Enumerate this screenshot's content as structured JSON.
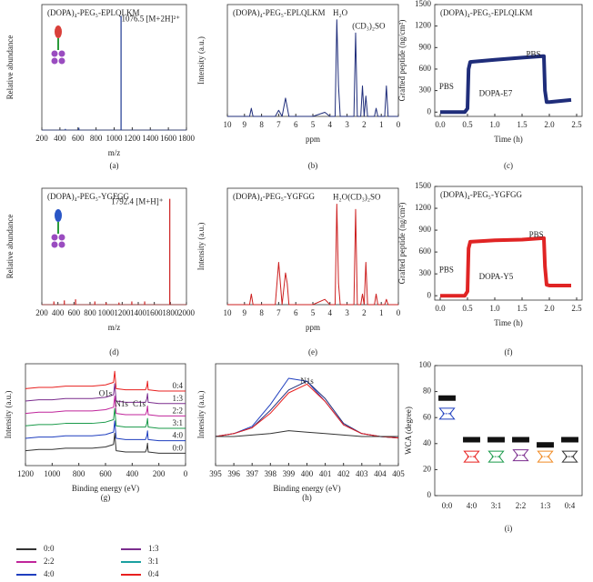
{
  "chart_data": [
    {
      "type": "stem",
      "panel_label": "(a)",
      "title": "(DOPA)₄-PEG₅-EPLQLKM",
      "xlabel": "m/z",
      "ylabel": "Relative abundance",
      "xlim": [
        200,
        1800
      ],
      "ylim": [
        0,
        110
      ],
      "xticks": [
        200,
        400,
        600,
        800,
        1000,
        1200,
        1400,
        1600,
        1800
      ],
      "x": [
        460,
        610,
        1076.5
      ],
      "series": [
        {
          "color": "#1f3a93",
          "values": [
            1,
            2,
            100
          ]
        }
      ],
      "annotations": [
        {
          "text": "1076.5 [M+2H]²⁺"
        }
      ]
    },
    {
      "type": "line",
      "panel_label": "(b)",
      "title": "(DOPA)₄-PEG₅-EPLQLKM",
      "xlabel": "ppm",
      "ylabel": "Intensity (a.u.)",
      "xlim": [
        10,
        0
      ],
      "ylim": [
        0,
        110
      ],
      "xticks": [
        10,
        9,
        8,
        7,
        6,
        5,
        4,
        3,
        2,
        1,
        0
      ],
      "x": [
        10,
        8.7,
        8.6,
        8.5,
        7.2,
        7.0,
        6.8,
        6.6,
        6.5,
        6.4,
        5.0,
        4.3,
        4.0,
        3.7,
        3.6,
        3.5,
        3.4,
        3.0,
        2.6,
        2.5,
        2.4,
        2.2,
        2.1,
        2.0,
        1.9,
        1.8,
        1.6,
        1.4,
        1.3,
        1.2,
        0.8,
        0.7,
        0.6,
        0.3,
        0
      ],
      "series": [
        {
          "color": "#1f2d7a",
          "values": [
            0,
            0,
            8,
            0,
            0,
            6,
            0,
            18,
            9,
            0,
            0,
            4,
            0,
            0,
            95,
            30,
            0,
            0,
            0,
            82,
            0,
            0,
            30,
            0,
            20,
            0,
            0,
            0,
            8,
            0,
            0,
            30,
            0,
            0,
            0
          ]
        }
      ],
      "annotations": [
        {
          "text": "H₂O"
        },
        {
          "text": "(CD₃)₂SO"
        }
      ]
    },
    {
      "type": "line",
      "panel_label": "(c)",
      "title": "(DOPA)₄-PEG₅-EPLQLKM",
      "xlabel": "Time (h)",
      "ylabel": "Grafted peptide (ng/cm²)",
      "xlim": [
        -0.1,
        2.6
      ],
      "ylim": [
        -60,
        1500
      ],
      "xticks": [
        {
          "value": 0,
          "label": "0.0"
        },
        0.5,
        {
          "value": 1,
          "label": "1.0"
        },
        1.5,
        {
          "value": 2,
          "label": "2.0"
        },
        2.5
      ],
      "yticks": [
        0,
        300,
        600,
        900,
        1200,
        1500
      ],
      "x": [
        0,
        0.45,
        0.5,
        0.52,
        0.55,
        1.0,
        1.5,
        1.88,
        1.9,
        1.92,
        1.95,
        2.0,
        2.4
      ],
      "series": [
        {
          "color": "#1f2d7a",
          "values": [
            0,
            0,
            50,
            600,
            700,
            730,
            760,
            780,
            780,
            300,
            140,
            140,
            170
          ]
        }
      ],
      "annotations": [
        {
          "text": "PBS"
        },
        {
          "text": "DOPA-E7"
        },
        {
          "text": "PBS"
        }
      ]
    },
    {
      "type": "stem",
      "panel_label": "(d)",
      "title": "(DOPA)₄-PEG₅-YGFGG",
      "xlabel": "m/z",
      "ylabel": "Relative abundance",
      "xlim": [
        200,
        2000
      ],
      "ylim": [
        0,
        110
      ],
      "xticks": [
        200,
        400,
        600,
        800,
        1000,
        1200,
        1400,
        1600,
        1800,
        2000
      ],
      "x": [
        350,
        480,
        620,
        860,
        1000,
        1160,
        1320,
        1480,
        1792.4
      ],
      "series": [
        {
          "color": "#cc1f1f",
          "values": [
            3,
            4,
            5,
            3,
            2,
            2,
            3,
            3,
            100
          ]
        }
      ],
      "annotations": [
        {
          "text": "1792.4 [M+H]⁺"
        }
      ]
    },
    {
      "type": "line",
      "panel_label": "(e)",
      "title": "(DOPA)₄-PEG₅-YGFGG",
      "xlabel": "ppm",
      "ylabel": "Intensity (a.u.)",
      "xlim": [
        10,
        0
      ],
      "ylim": [
        0,
        110
      ],
      "xticks": [
        10,
        9,
        8,
        7,
        6,
        5,
        4,
        3,
        2,
        1,
        0
      ],
      "x": [
        10,
        8.7,
        8.6,
        8.5,
        7.2,
        7.0,
        6.8,
        6.6,
        6.5,
        6.4,
        5.0,
        4.3,
        4.0,
        3.7,
        3.6,
        3.5,
        3.4,
        3.0,
        2.6,
        2.5,
        2.4,
        2.2,
        2.1,
        2.0,
        1.9,
        1.8,
        1.6,
        1.4,
        1.3,
        1.2,
        0.8,
        0.7,
        0.6,
        0.3,
        0
      ],
      "series": [
        {
          "color": "#cc1f1f",
          "values": [
            0,
            0,
            10,
            0,
            0,
            40,
            0,
            30,
            20,
            0,
            0,
            5,
            0,
            0,
            95,
            20,
            0,
            0,
            0,
            90,
            0,
            0,
            10,
            0,
            40,
            0,
            0,
            0,
            10,
            0,
            0,
            5,
            0,
            0,
            0
          ]
        }
      ],
      "annotations": [
        {
          "text": "H₂O"
        },
        {
          "text": "(CD₃)₂SO"
        }
      ]
    },
    {
      "type": "line",
      "panel_label": "(f)",
      "title": "(DOPA)₄-PEG₅-YGFGG",
      "xlabel": "Time (h)",
      "ylabel": "Grafted peptide (ng/cm²)",
      "xlim": [
        -0.1,
        2.6
      ],
      "ylim": [
        -60,
        1500
      ],
      "xticks": [
        {
          "value": 0,
          "label": "0.0"
        },
        0.5,
        {
          "value": 1,
          "label": "1.0"
        },
        1.5,
        {
          "value": 2,
          "label": "2.0"
        },
        2.5
      ],
      "yticks": [
        0,
        300,
        600,
        900,
        1200,
        1500
      ],
      "x": [
        0,
        0.45,
        0.5,
        0.52,
        0.55,
        1.0,
        1.5,
        1.88,
        1.9,
        1.92,
        1.95,
        2.0,
        2.4
      ],
      "series": [
        {
          "color": "#e02424",
          "values": [
            0,
            0,
            60,
            650,
            740,
            760,
            770,
            790,
            790,
            400,
            150,
            140,
            140
          ]
        }
      ],
      "annotations": [
        {
          "text": "PBS"
        },
        {
          "text": "DOPA-Y5"
        },
        {
          "text": "PBS"
        }
      ]
    },
    {
      "type": "line",
      "panel_label": "(g)",
      "xlabel": "Binding energy (eV)",
      "ylabel": "Intensity (a.u.)",
      "xlim": [
        1200,
        0
      ],
      "ylim": [
        0,
        82
      ],
      "xticks": [
        1200,
        1000,
        800,
        600,
        400,
        200,
        0
      ],
      "x": [
        1200,
        1100,
        1000,
        900,
        800,
        700,
        600,
        540,
        531,
        520,
        450,
        400,
        300,
        290,
        285,
        280,
        200,
        100,
        0
      ],
      "series": [
        {
          "name": "0:4",
          "color": "#e8201f",
          "values": [
            62,
            63,
            63,
            64,
            64,
            64,
            65,
            67,
            76,
            62,
            61,
            61,
            61,
            64,
            68,
            61,
            60,
            60,
            60
          ]
        },
        {
          "name": "1:3",
          "color": "#7b2d8e",
          "values": [
            52,
            53,
            53,
            54,
            54,
            54,
            55,
            57,
            66,
            52,
            51,
            51,
            51,
            54,
            58,
            51,
            50,
            50,
            50
          ]
        },
        {
          "name": "2:2",
          "color": "#c0259b",
          "values": [
            42,
            43,
            43,
            44,
            44,
            44,
            45,
            47,
            56,
            42,
            41,
            41,
            41,
            44,
            48,
            41,
            40,
            40,
            40
          ]
        },
        {
          "name": "3:1",
          "color": "#1a9a4a",
          "values": [
            32,
            33,
            33,
            34,
            34,
            34,
            35,
            37,
            46,
            32,
            31,
            31,
            31,
            34,
            38,
            31,
            30,
            30,
            30
          ]
        },
        {
          "name": "4:0",
          "color": "#1f3fbf",
          "values": [
            22,
            23,
            23,
            24,
            24,
            24,
            25,
            27,
            36,
            22,
            21,
            21,
            21,
            24,
            28,
            21,
            20,
            20,
            20
          ]
        },
        {
          "name": "0:0",
          "color": "#333333",
          "values": [
            12,
            13,
            13,
            14,
            14,
            14,
            15,
            17,
            26,
            12,
            11,
            11,
            11,
            14,
            18,
            11,
            10,
            10,
            10
          ]
        }
      ],
      "annotations": [
        {
          "text": "O1s"
        },
        {
          "text": "N1s"
        },
        {
          "text": "C1s"
        }
      ]
    },
    {
      "type": "line",
      "panel_label": "(h)",
      "xlabel": "Binding energy (eV)",
      "ylabel": "Intensity (a.u.)",
      "xlim": [
        395,
        405
      ],
      "ylim": [
        0,
        70
      ],
      "xticks": [
        395,
        396,
        397,
        398,
        399,
        400,
        401,
        402,
        403,
        404,
        405
      ],
      "x": [
        395,
        396,
        397,
        398,
        399,
        400,
        401,
        402,
        403,
        404,
        405
      ],
      "series": [
        {
          "color": "#1f3fbf",
          "values": [
            20,
            22,
            27,
            42,
            60,
            58,
            44,
            28,
            22,
            20,
            19
          ]
        },
        {
          "color": "#1f2d7a",
          "values": [
            20,
            22,
            26,
            38,
            52,
            58,
            46,
            29,
            22,
            20,
            19
          ]
        },
        {
          "color": "#e8201f",
          "values": [
            20,
            22,
            26,
            36,
            50,
            56,
            44,
            28,
            22,
            20,
            19
          ]
        },
        {
          "color": "#333333",
          "values": [
            20,
            20,
            21,
            22,
            24,
            23,
            22,
            21,
            20,
            20,
            20
          ]
        }
      ],
      "annotations": [
        {
          "text": "N1s"
        }
      ]
    },
    {
      "type": "violin",
      "panel_label": "(i)",
      "ylabel": "WCA (degree)",
      "ylim": [
        0,
        100
      ],
      "yticks": [
        0,
        20,
        40,
        60,
        80,
        100
      ],
      "categories": [
        "0:0",
        "4:0",
        "3:1",
        "2:2",
        "1:3",
        "0:4"
      ],
      "values": [
        63,
        30,
        30,
        31,
        30,
        30
      ],
      "bar_values": [
        75,
        43,
        43,
        43,
        39,
        43
      ],
      "colors": [
        "#1f3fbf",
        "#e8201f",
        "#1a9a4a",
        "#7b2d8e",
        "#f08a24",
        "#333333"
      ]
    }
  ],
  "legend": [
    {
      "label": "0:0",
      "color": "#333333"
    },
    {
      "label": "2:2",
      "color": "#c0259b"
    },
    {
      "label": "4:0",
      "color": "#1f3fbf"
    },
    {
      "label": "1:3",
      "color": "#7b2d8e"
    },
    {
      "label": "3:1",
      "color": "#1aa0a0"
    },
    {
      "label": "0:4",
      "color": "#e8201f"
    }
  ]
}
